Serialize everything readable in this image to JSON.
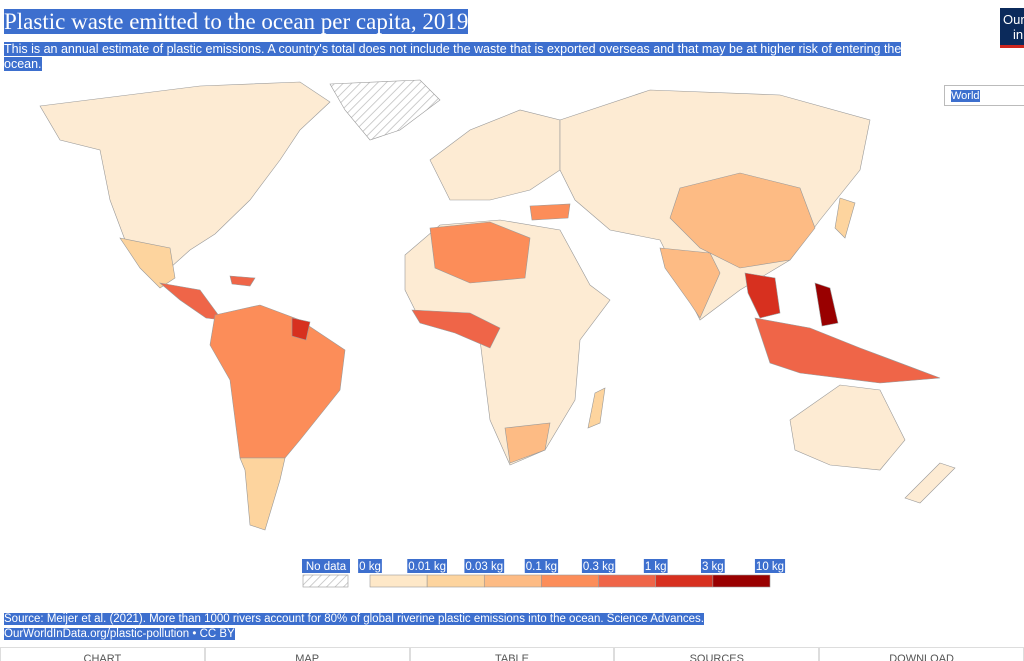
{
  "header": {
    "title": "Plastic waste emitted to the ocean per capita, 2019",
    "subtitle": "This is an annual estimate of plastic emissions. A country's total does not include the waste that is exported overseas and that may be at higher risk of entering the ocean.",
    "logo": [
      "Our",
      "in"
    ]
  },
  "region_select": "World",
  "legend": {
    "no_data": "No data",
    "labels": [
      "0 kg",
      "0.01 kg",
      "0.03 kg",
      "0.1 kg",
      "0.3 kg",
      "1 kg",
      "3 kg",
      "10 kg"
    ],
    "colors": [
      "#fee8c8",
      "#fdd49e",
      "#fdbb84",
      "#fc8d59",
      "#ef6548",
      "#d7301f",
      "#990000"
    ]
  },
  "footer": {
    "source": "Source: Meijer et al. (2021). More than 1000 rivers account for 80% of global riverine plastic emissions into the ocean. Science Advances.",
    "link": "OurWorldInData.org/plastic-pollution • CC BY"
  },
  "tabs": [
    "CHART",
    "MAP",
    "TABLE",
    "SOURCES",
    "DOWNLOAD"
  ]
}
